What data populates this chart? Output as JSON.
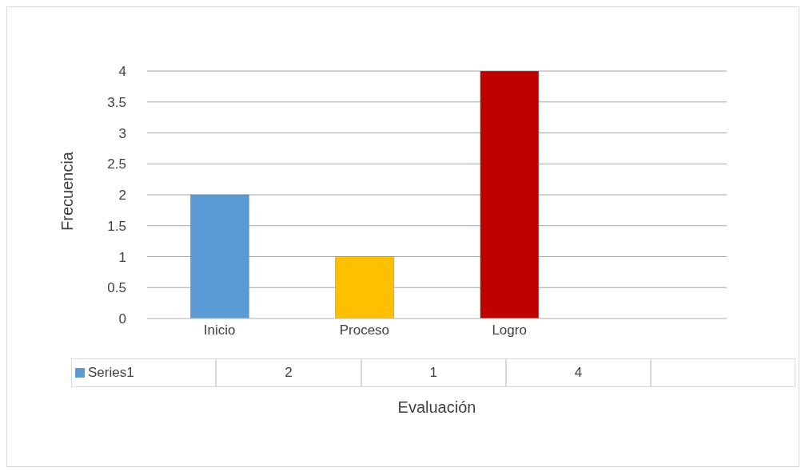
{
  "chart_data": {
    "type": "bar",
    "xlabel": "Evaluación",
    "ylabel": "Frecuencia",
    "categories": [
      "Inicio",
      "Proceso",
      "Logro",
      null
    ],
    "series": [
      {
        "name": "Series1",
        "color": "#5b9bd5",
        "colors": [
          "#5b9bd5",
          "#ffc000",
          "#c00000",
          "#808080"
        ],
        "values": [
          2,
          1,
          4,
          null
        ]
      }
    ],
    "ylim": [
      0,
      4
    ],
    "yticks": [
      0,
      0.5,
      1,
      1.5,
      2,
      2.5,
      3,
      3.5,
      4
    ],
    "grid": "y",
    "legend": "bottom left",
    "data_labels": true
  }
}
